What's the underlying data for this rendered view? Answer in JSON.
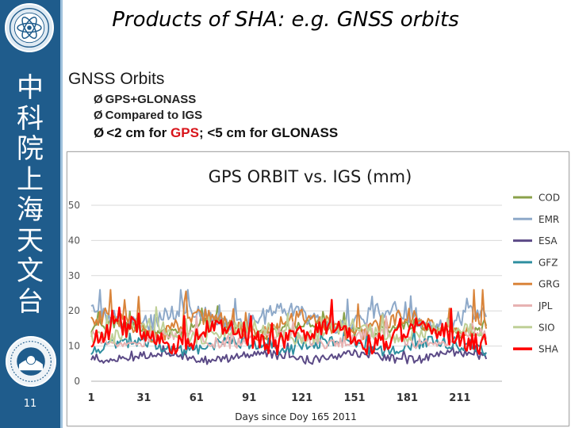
{
  "slide": {
    "title": "Products of SHA: e.g. GNSS orbits",
    "heading": "GNSS Orbits",
    "bullets": [
      {
        "text": "GPS+GLONASS"
      },
      {
        "text": "Compared to IGS"
      },
      {
        "prefix": "<2 cm for ",
        "highlight": "GPS",
        "suffix": "; <5 cm for GLONASS"
      }
    ],
    "bullet_marker": "Ø",
    "page_number": "11"
  },
  "sidebar": {
    "vertical_title": [
      "中",
      "科",
      "院",
      "上",
      "海",
      "天",
      "文",
      "台"
    ]
  },
  "chart_data": {
    "type": "line",
    "title": "GPS ORBIT vs. IGS (mm)",
    "xlabel": "Days since Doy 165 2011",
    "ylabel": "",
    "xlim": [
      1,
      235
    ],
    "ylim": [
      0,
      50
    ],
    "xticks": [
      1,
      31,
      61,
      91,
      121,
      151,
      181,
      211
    ],
    "yticks": [
      0,
      10,
      20,
      30,
      40,
      50
    ],
    "legend_position": "right",
    "series": [
      {
        "name": "COD",
        "color": "#8aa14a",
        "base": 15,
        "amp": 1.5,
        "vol": 0.8,
        "spike": 3
      },
      {
        "name": "EMR",
        "color": "#8ea9c9",
        "base": 18,
        "amp": 2.0,
        "vol": 1.2,
        "spike": 4
      },
      {
        "name": "ESA",
        "color": "#5b4a86",
        "base": 7,
        "amp": 1.0,
        "vol": 0.6,
        "spike": 2
      },
      {
        "name": "GFZ",
        "color": "#2f8fa0",
        "base": 10,
        "amp": 1.2,
        "vol": 0.8,
        "spike": 3
      },
      {
        "name": "GRG",
        "color": "#d9843a",
        "base": 16,
        "amp": 2.5,
        "vol": 1.2,
        "spike": 7
      },
      {
        "name": "JPL",
        "color": "#e7b2b2",
        "base": 12,
        "amp": 1.5,
        "vol": 0.8,
        "spike": 3
      },
      {
        "name": "SIO",
        "color": "#bfd097",
        "base": 14,
        "amp": 1.8,
        "vol": 1.0,
        "spike": 4
      },
      {
        "name": "SHA",
        "color": "#ff0000",
        "base": 13,
        "amp": 2.5,
        "vol": 1.5,
        "spike": 5
      }
    ]
  }
}
